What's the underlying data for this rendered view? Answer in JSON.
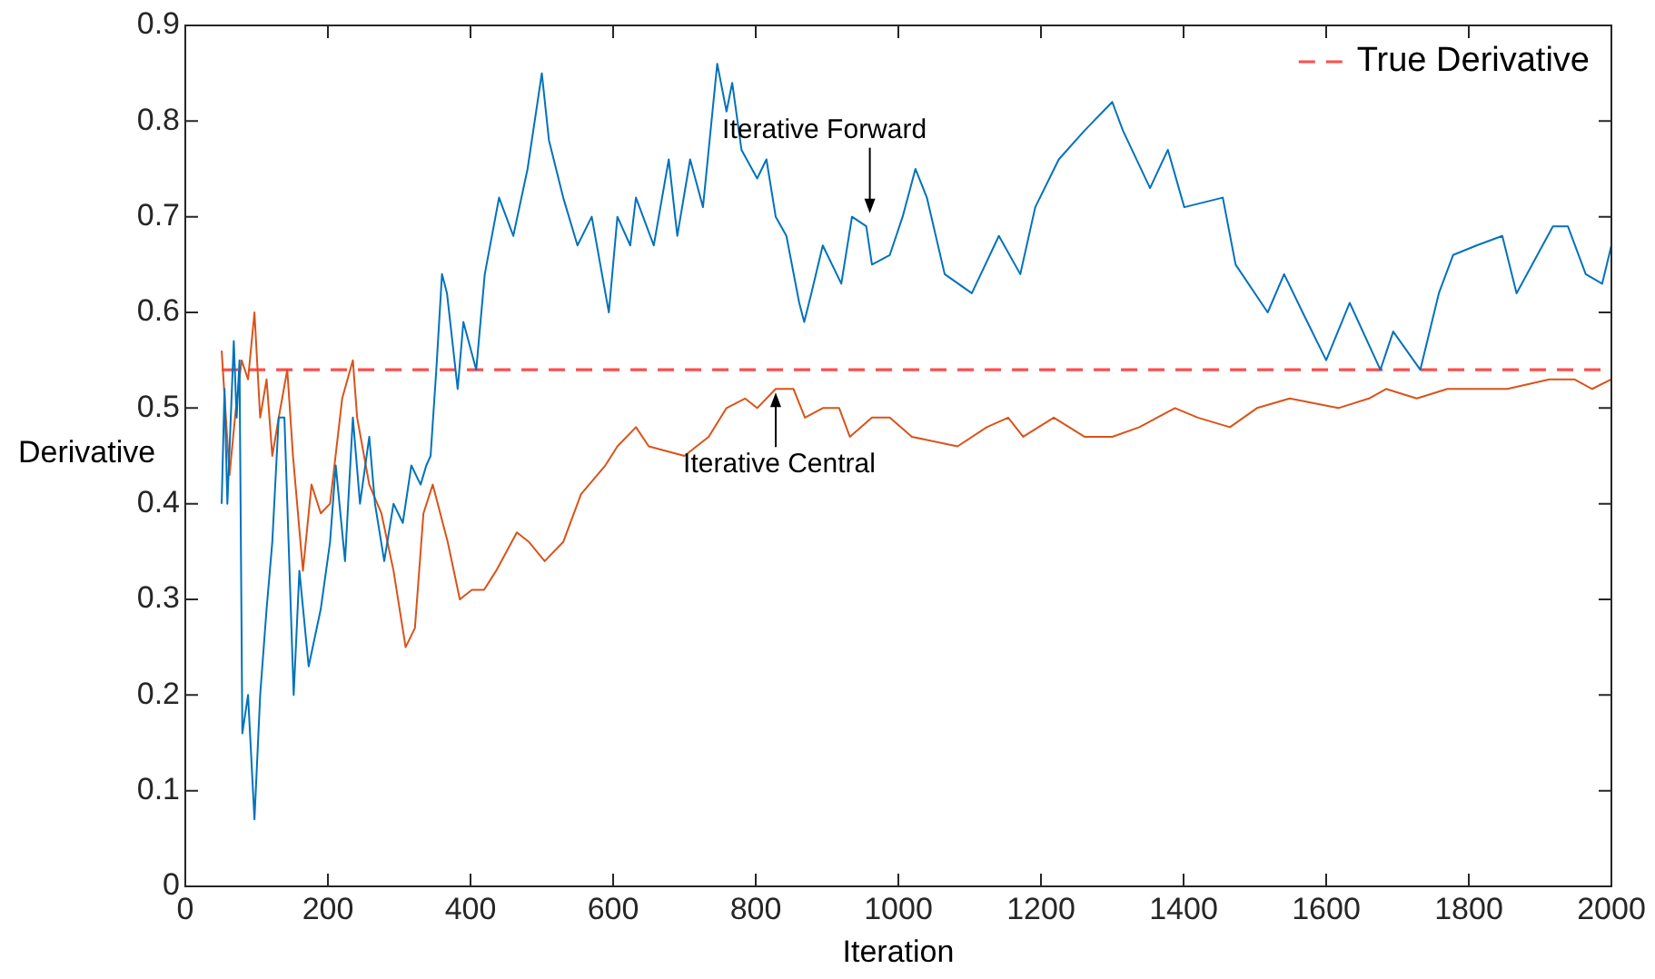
{
  "chart_data": {
    "type": "line",
    "xlabel": "Iteration",
    "ylabel": "Derivative",
    "xlim": [
      0,
      2000
    ],
    "xticks": [
      0,
      200,
      400,
      600,
      800,
      1000,
      1200,
      1400,
      1600,
      1800,
      2000
    ],
    "ylim": [
      0,
      0.9
    ],
    "yticks": [
      0,
      0.1,
      0.2,
      0.3,
      0.4,
      0.5,
      0.6,
      0.7,
      0.8,
      0.9
    ],
    "grid": false,
    "legend": "top right",
    "marker": "none",
    "series": [
      {
        "color": "#0072bd",
        "x": [
          51,
          55,
          59,
          68,
          72,
          76,
          80,
          88,
          97,
          105,
          114,
          122,
          131,
          139,
          152,
          160,
          173,
          190,
          203,
          211,
          224,
          235,
          245,
          258,
          266,
          279,
          292,
          305,
          317,
          330,
          338,
          344,
          352,
          360,
          367,
          382,
          390,
          408,
          420,
          440,
          460,
          480,
          500,
          510,
          530,
          550,
          570,
          594,
          606,
          624,
          632,
          657,
          678,
          690,
          708,
          726,
          746,
          759,
          767,
          780,
          802,
          815,
          828,
          843,
          861,
          868,
          878,
          894,
          920,
          935,
          955,
          963,
          988,
          1006,
          1024,
          1040,
          1065,
          1103,
          1141,
          1171,
          1192,
          1225,
          1261,
          1300,
          1315,
          1353,
          1378,
          1401,
          1455,
          1473,
          1518,
          1541,
          1567,
          1600,
          1633,
          1676,
          1694,
          1732,
          1758,
          1778,
          1811,
          1847,
          1867,
          1918,
          1939,
          1964,
          1987,
          2000
        ],
        "values": [
          0.4,
          0.52,
          0.4,
          0.57,
          0.49,
          0.55,
          0.16,
          0.2,
          0.07,
          0.2,
          0.29,
          0.36,
          0.49,
          0.49,
          0.2,
          0.33,
          0.23,
          0.29,
          0.36,
          0.44,
          0.34,
          0.49,
          0.4,
          0.47,
          0.4,
          0.34,
          0.4,
          0.38,
          0.44,
          0.42,
          0.44,
          0.45,
          0.54,
          0.64,
          0.62,
          0.52,
          0.59,
          0.54,
          0.64,
          0.72,
          0.68,
          0.75,
          0.85,
          0.78,
          0.72,
          0.67,
          0.7,
          0.6,
          0.7,
          0.67,
          0.72,
          0.67,
          0.76,
          0.68,
          0.76,
          0.71,
          0.86,
          0.81,
          0.84,
          0.77,
          0.74,
          0.76,
          0.7,
          0.68,
          0.61,
          0.59,
          0.62,
          0.67,
          0.63,
          0.7,
          0.69,
          0.65,
          0.66,
          0.7,
          0.75,
          0.72,
          0.64,
          0.62,
          0.68,
          0.64,
          0.71,
          0.76,
          0.79,
          0.82,
          0.79,
          0.73,
          0.77,
          0.71,
          0.72,
          0.65,
          0.6,
          0.64,
          0.6,
          0.55,
          0.61,
          0.54,
          0.58,
          0.54,
          0.62,
          0.66,
          0.67,
          0.68,
          0.62,
          0.69,
          0.69,
          0.64,
          0.63,
          0.67
        ]
      },
      {
        "color": "#d95319",
        "x": [
          51,
          62,
          71,
          79,
          88,
          97,
          105,
          114,
          122,
          131,
          143,
          151,
          165,
          177,
          190,
          203,
          220,
          235,
          241,
          258,
          275,
          292,
          309,
          322,
          334,
          347,
          368,
          385,
          402,
          419,
          436,
          465,
          482,
          504,
          530,
          555,
          589,
          606,
          632,
          650,
          700,
          734,
          759,
          785,
          802,
          828,
          853,
          869,
          894,
          917,
          932,
          963,
          988,
          1019,
          1083,
          1124,
          1154,
          1175,
          1218,
          1261,
          1300,
          1338,
          1388,
          1420,
          1465,
          1503,
          1549,
          1617,
          1660,
          1684,
          1727,
          1770,
          1811,
          1854,
          1913,
          1948,
          1973,
          2000
        ],
        "values": [
          0.56,
          0.43,
          0.5,
          0.55,
          0.53,
          0.6,
          0.49,
          0.53,
          0.45,
          0.49,
          0.54,
          0.45,
          0.33,
          0.42,
          0.39,
          0.4,
          0.51,
          0.55,
          0.49,
          0.42,
          0.39,
          0.33,
          0.25,
          0.27,
          0.39,
          0.42,
          0.36,
          0.3,
          0.31,
          0.31,
          0.33,
          0.37,
          0.36,
          0.34,
          0.36,
          0.41,
          0.44,
          0.46,
          0.48,
          0.46,
          0.45,
          0.47,
          0.5,
          0.51,
          0.5,
          0.52,
          0.52,
          0.49,
          0.5,
          0.5,
          0.47,
          0.49,
          0.49,
          0.47,
          0.46,
          0.48,
          0.49,
          0.47,
          0.49,
          0.47,
          0.47,
          0.48,
          0.5,
          0.49,
          0.48,
          0.5,
          0.51,
          0.5,
          0.51,
          0.52,
          0.51,
          0.52,
          0.52,
          0.52,
          0.53,
          0.53,
          0.52,
          0.53
        ]
      },
      {
        "name": "True Derivative",
        "color": "#ff4c4c",
        "line_style": "dashed",
        "x": [
          51,
          2000
        ],
        "values": [
          0.54,
          0.54
        ]
      }
    ],
    "annotations": [
      {
        "text": "Iterative Forward",
        "x": 960,
        "y": 0.7
      },
      {
        "text": "Iterative Central",
        "x": 828,
        "y": 0.52
      }
    ]
  }
}
